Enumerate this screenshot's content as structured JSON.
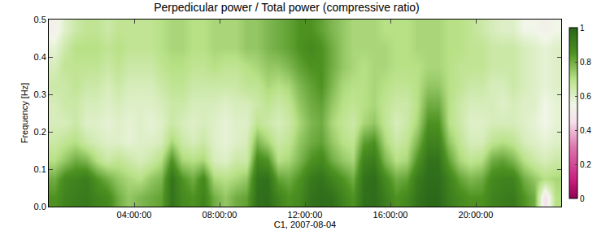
{
  "chart_data": {
    "type": "heatmap",
    "title": "Perpedicular power / Total power (compressive ratio)",
    "x_label": "C1, 2007-08-04",
    "y_label": "Frequency [Hz]",
    "xlim": [
      0,
      24
    ],
    "ylim": [
      0,
      0.5
    ],
    "xticks": [
      {
        "value": 4,
        "label": "04:00:00"
      },
      {
        "value": 8,
        "label": "08:00:00"
      },
      {
        "value": 12,
        "label": "12:00:00"
      },
      {
        "value": 16,
        "label": "16:00:00"
      },
      {
        "value": 20,
        "label": "20:00:00"
      }
    ],
    "yticks": [
      {
        "value": 0,
        "label": "0.0"
      },
      0.1,
      0.2,
      0.3,
      0.4,
      0.5
    ],
    "colorbar_range": [
      0,
      1
    ],
    "colorbar_ticks": [
      0,
      0.2,
      0.4,
      0.6,
      0.8,
      1
    ],
    "x": [
      0.25,
      0.75,
      1.25,
      1.75,
      2.25,
      2.75,
      3.25,
      3.75,
      4.25,
      4.75,
      5.25,
      5.75,
      6.25,
      6.75,
      7.25,
      7.75,
      8.25,
      8.75,
      9.25,
      9.75,
      10.25,
      10.75,
      11.25,
      11.75,
      12.25,
      12.75,
      13.25,
      13.75,
      14.25,
      14.75,
      15.25,
      15.75,
      16.25,
      16.75,
      17.25,
      17.75,
      18.25,
      18.75,
      19.25,
      19.75,
      20.25,
      20.75,
      21.25,
      21.75,
      22.25,
      22.75,
      23.25,
      23.75
    ],
    "y": [
      0.025,
      0.075,
      0.125,
      0.175,
      0.225,
      0.275,
      0.325,
      0.375,
      0.425,
      0.475
    ],
    "z": [
      [
        0.85,
        0.9,
        0.92,
        0.93,
        0.9,
        0.88,
        0.8,
        0.75,
        0.78,
        0.8,
        0.82,
        0.95,
        0.88,
        0.85,
        0.9,
        0.8,
        0.75,
        0.8,
        0.82,
        0.96,
        0.97,
        0.9,
        0.85,
        0.88,
        0.95,
        0.97,
        0.96,
        0.9,
        0.85,
        0.96,
        0.97,
        0.92,
        0.85,
        0.88,
        0.95,
        0.98,
        0.98,
        0.92,
        0.88,
        0.85,
        0.85,
        0.9,
        0.92,
        0.93,
        0.85,
        0.8,
        0.45,
        0.7
      ],
      [
        0.8,
        0.88,
        0.9,
        0.92,
        0.85,
        0.8,
        0.75,
        0.72,
        0.7,
        0.75,
        0.78,
        0.95,
        0.85,
        0.8,
        0.88,
        0.72,
        0.7,
        0.72,
        0.75,
        0.95,
        0.96,
        0.82,
        0.8,
        0.85,
        0.93,
        0.95,
        0.9,
        0.85,
        0.8,
        0.95,
        0.97,
        0.88,
        0.8,
        0.82,
        0.93,
        0.97,
        0.97,
        0.9,
        0.82,
        0.78,
        0.8,
        0.88,
        0.9,
        0.9,
        0.8,
        0.75,
        0.7,
        0.72
      ],
      [
        0.7,
        0.75,
        0.8,
        0.78,
        0.7,
        0.65,
        0.68,
        0.65,
        0.62,
        0.65,
        0.7,
        0.85,
        0.72,
        0.7,
        0.72,
        0.62,
        0.6,
        0.65,
        0.65,
        0.88,
        0.85,
        0.7,
        0.72,
        0.78,
        0.85,
        0.88,
        0.8,
        0.75,
        0.72,
        0.9,
        0.92,
        0.78,
        0.7,
        0.72,
        0.85,
        0.95,
        0.95,
        0.82,
        0.72,
        0.68,
        0.7,
        0.8,
        0.82,
        0.78,
        0.7,
        0.65,
        0.62,
        0.65
      ],
      [
        0.65,
        0.68,
        0.7,
        0.65,
        0.62,
        0.6,
        0.6,
        0.58,
        0.6,
        0.6,
        0.62,
        0.72,
        0.65,
        0.62,
        0.65,
        0.6,
        0.58,
        0.6,
        0.62,
        0.78,
        0.72,
        0.65,
        0.68,
        0.75,
        0.8,
        0.82,
        0.75,
        0.7,
        0.68,
        0.82,
        0.85,
        0.72,
        0.65,
        0.68,
        0.78,
        0.9,
        0.9,
        0.75,
        0.68,
        0.62,
        0.62,
        0.68,
        0.7,
        0.68,
        0.62,
        0.6,
        0.58,
        0.6
      ],
      [
        0.62,
        0.62,
        0.65,
        0.6,
        0.6,
        0.58,
        0.6,
        0.58,
        0.6,
        0.58,
        0.6,
        0.65,
        0.62,
        0.6,
        0.62,
        0.6,
        0.58,
        0.6,
        0.6,
        0.68,
        0.65,
        0.62,
        0.65,
        0.72,
        0.78,
        0.8,
        0.72,
        0.68,
        0.65,
        0.72,
        0.75,
        0.68,
        0.62,
        0.65,
        0.72,
        0.85,
        0.85,
        0.7,
        0.65,
        0.6,
        0.6,
        0.62,
        0.62,
        0.62,
        0.6,
        0.58,
        0.55,
        0.58
      ],
      [
        0.62,
        0.65,
        0.65,
        0.62,
        0.62,
        0.6,
        0.62,
        0.6,
        0.6,
        0.6,
        0.62,
        0.65,
        0.65,
        0.62,
        0.62,
        0.62,
        0.6,
        0.62,
        0.62,
        0.65,
        0.68,
        0.65,
        0.68,
        0.75,
        0.8,
        0.82,
        0.75,
        0.7,
        0.68,
        0.7,
        0.72,
        0.68,
        0.65,
        0.65,
        0.7,
        0.8,
        0.8,
        0.7,
        0.65,
        0.62,
        0.62,
        0.62,
        0.6,
        0.62,
        0.6,
        0.6,
        0.55,
        0.58
      ],
      [
        0.65,
        0.65,
        0.68,
        0.65,
        0.65,
        0.62,
        0.65,
        0.62,
        0.62,
        0.62,
        0.65,
        0.68,
        0.68,
        0.65,
        0.65,
        0.65,
        0.65,
        0.65,
        0.68,
        0.68,
        0.72,
        0.7,
        0.72,
        0.78,
        0.82,
        0.85,
        0.78,
        0.72,
        0.7,
        0.7,
        0.72,
        0.7,
        0.68,
        0.68,
        0.7,
        0.75,
        0.75,
        0.7,
        0.68,
        0.65,
        0.65,
        0.62,
        0.62,
        0.65,
        0.62,
        0.6,
        0.58,
        0.6
      ],
      [
        0.62,
        0.68,
        0.68,
        0.68,
        0.68,
        0.65,
        0.68,
        0.65,
        0.65,
        0.65,
        0.68,
        0.7,
        0.7,
        0.68,
        0.68,
        0.7,
        0.68,
        0.68,
        0.7,
        0.72,
        0.75,
        0.75,
        0.78,
        0.82,
        0.85,
        0.85,
        0.8,
        0.75,
        0.72,
        0.7,
        0.72,
        0.72,
        0.7,
        0.7,
        0.7,
        0.72,
        0.72,
        0.7,
        0.68,
        0.68,
        0.68,
        0.65,
        0.65,
        0.65,
        0.62,
        0.6,
        0.58,
        0.6
      ],
      [
        0.58,
        0.65,
        0.7,
        0.7,
        0.7,
        0.68,
        0.7,
        0.68,
        0.68,
        0.68,
        0.7,
        0.72,
        0.72,
        0.7,
        0.7,
        0.72,
        0.72,
        0.72,
        0.75,
        0.75,
        0.78,
        0.8,
        0.82,
        0.85,
        0.88,
        0.85,
        0.8,
        0.75,
        0.72,
        0.72,
        0.72,
        0.72,
        0.7,
        0.7,
        0.72,
        0.72,
        0.72,
        0.7,
        0.7,
        0.68,
        0.68,
        0.65,
        0.65,
        0.65,
        0.62,
        0.6,
        0.58,
        0.6
      ],
      [
        0.52,
        0.6,
        0.65,
        0.68,
        0.68,
        0.65,
        0.68,
        0.68,
        0.68,
        0.68,
        0.7,
        0.72,
        0.72,
        0.7,
        0.7,
        0.72,
        0.72,
        0.72,
        0.75,
        0.75,
        0.78,
        0.8,
        0.82,
        0.85,
        0.85,
        0.82,
        0.78,
        0.75,
        0.72,
        0.72,
        0.72,
        0.7,
        0.7,
        0.7,
        0.72,
        0.72,
        0.72,
        0.7,
        0.7,
        0.68,
        0.65,
        0.62,
        0.6,
        0.6,
        0.55,
        0.55,
        0.52,
        0.55
      ]
    ]
  }
}
